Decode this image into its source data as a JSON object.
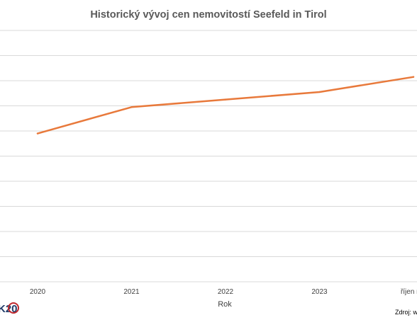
{
  "chart_data": {
    "type": "line",
    "title": "Historický vývoj cen nemovitostí Seefeld in Tirol",
    "xlabel": "Rok",
    "ylabel": "",
    "categories": [
      "2020",
      "2021",
      "2022",
      "2023",
      "říjen rok"
    ],
    "series": [
      {
        "values": [
          5.9,
          6.95,
          7.25,
          7.55,
          8.15
        ]
      }
    ],
    "ylim": [
      0,
      10
    ],
    "grid": true,
    "legend": "none",
    "colors": {
      "line": "#E8793B",
      "grid": "#D9D9D9"
    }
  },
  "footer": {
    "source": "Zdroj: w",
    "logo_text": "K20"
  }
}
